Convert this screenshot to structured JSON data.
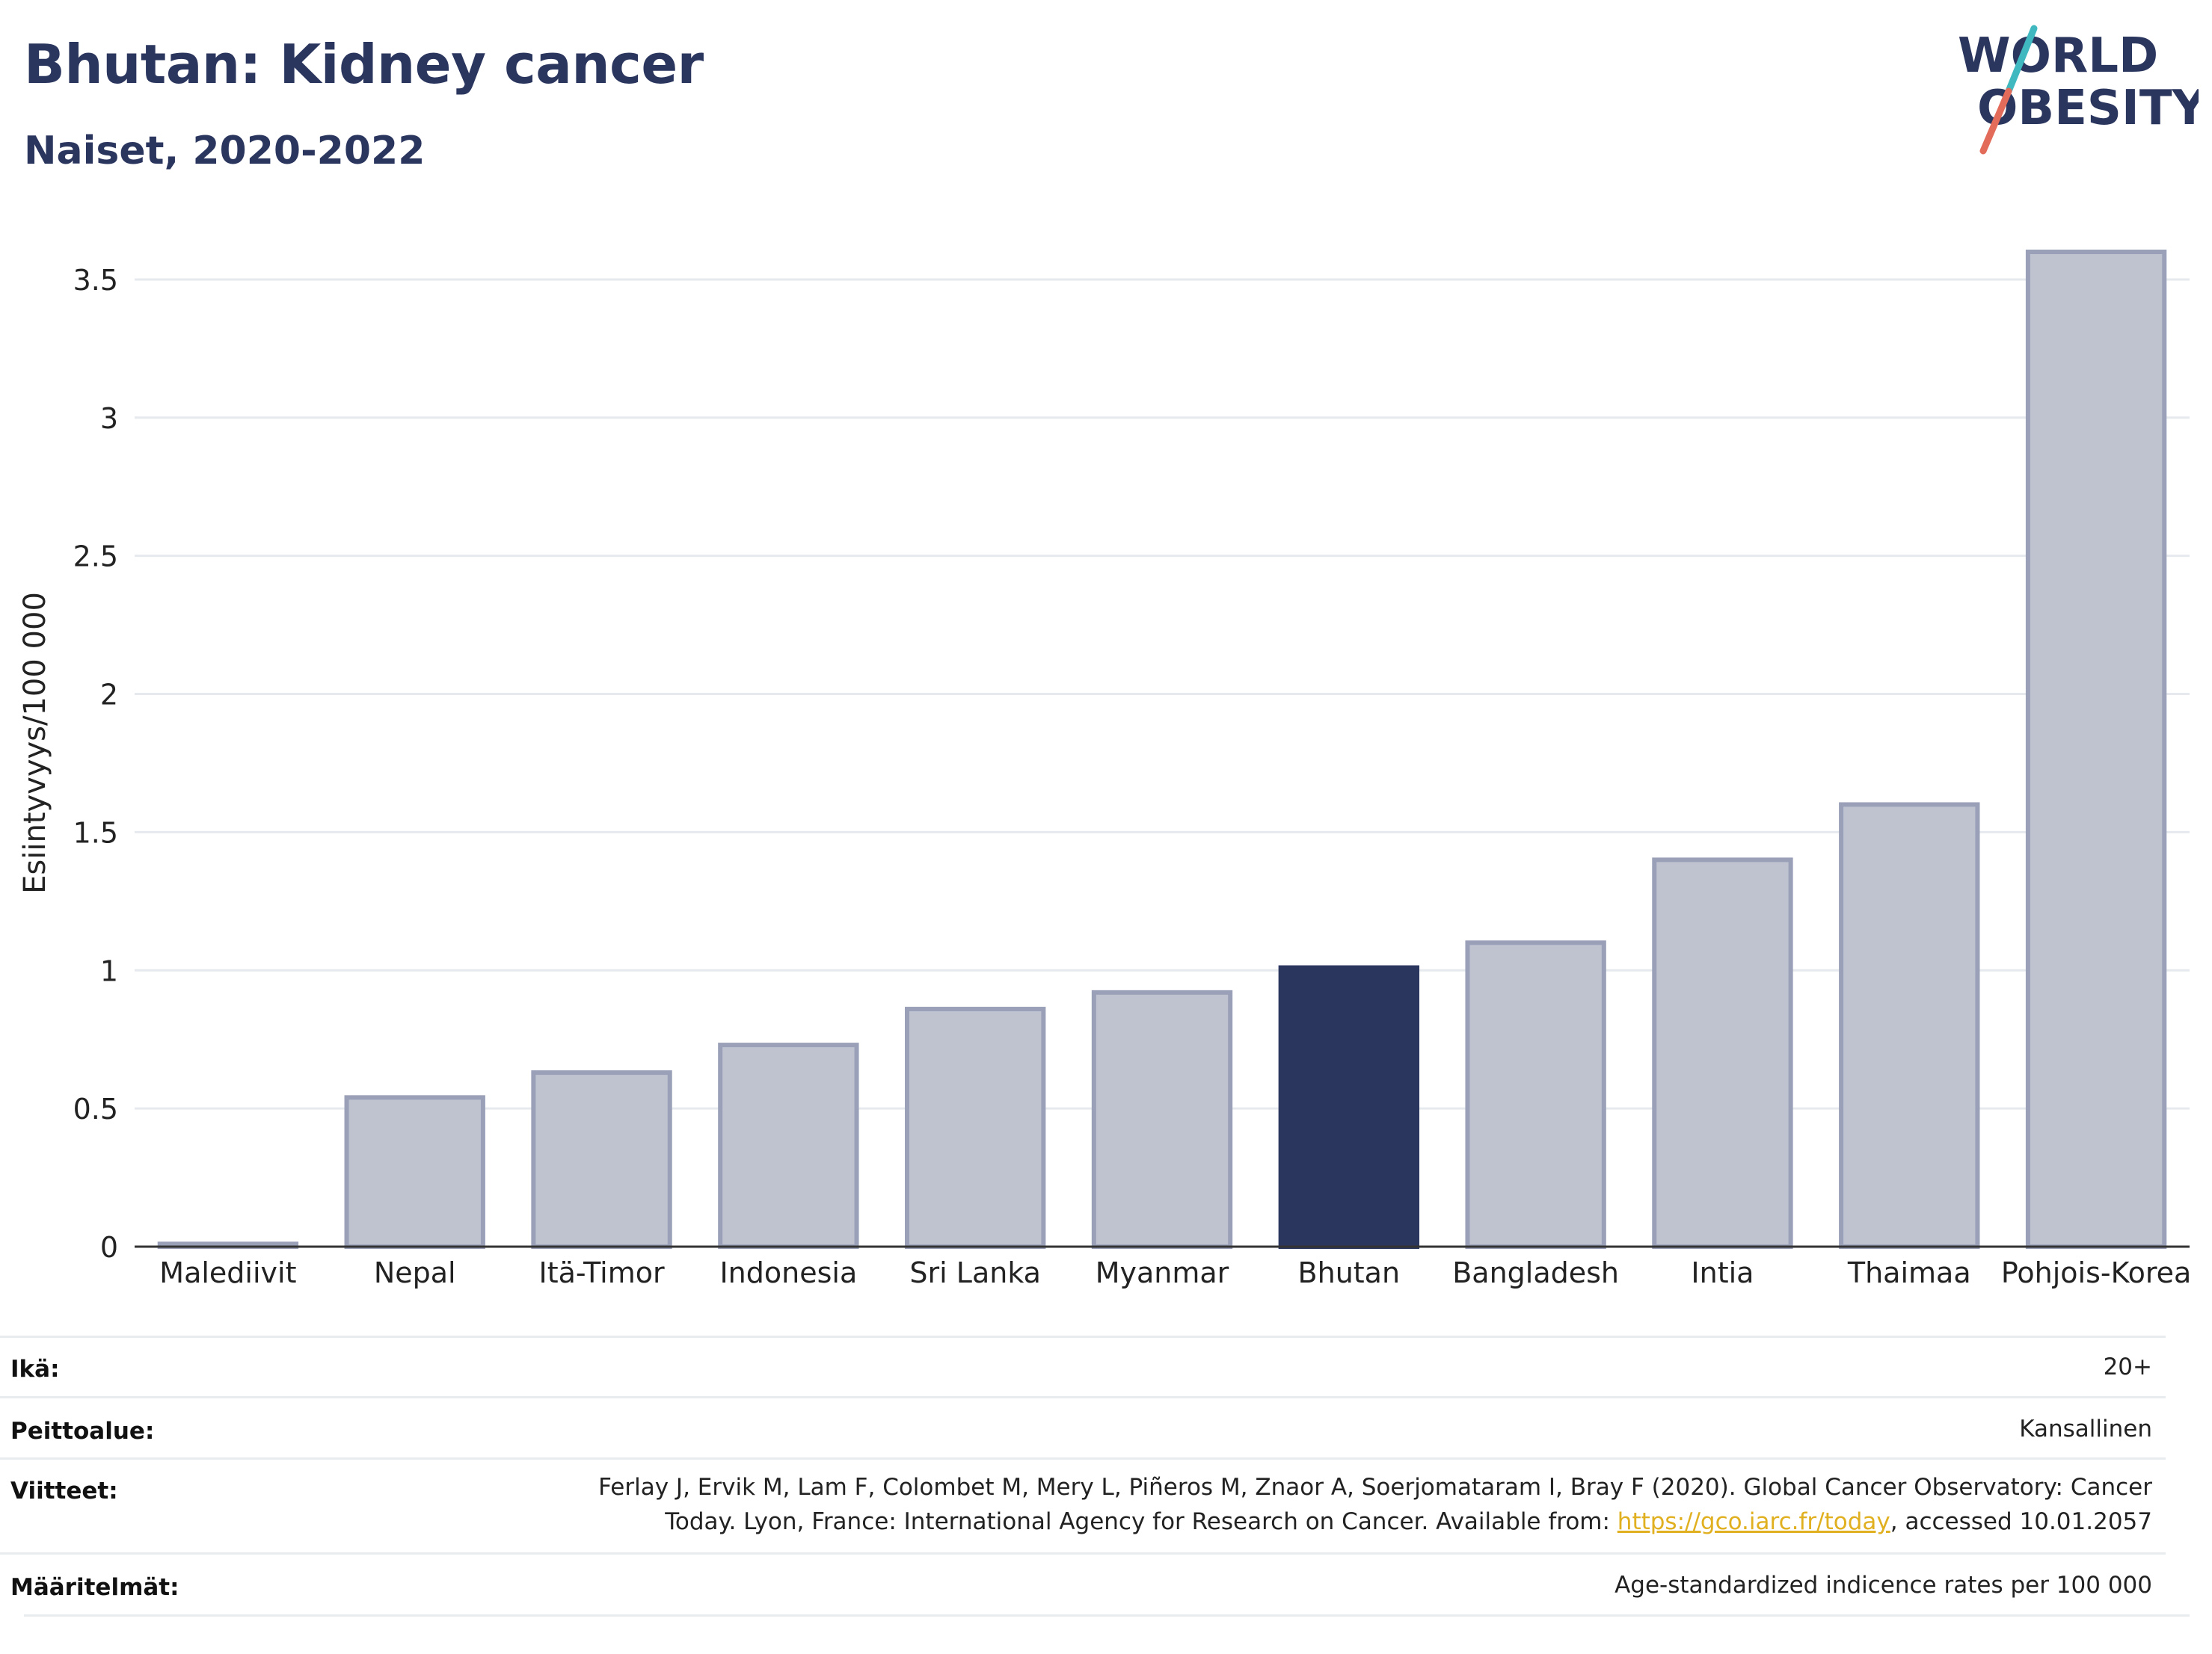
{
  "header": {
    "title": "Bhutan: Kidney cancer",
    "subtitle": "Naiset, 2020-2022"
  },
  "logo": {
    "line1": "WORLD",
    "line2": "OBESITY",
    "slash_colors": [
      "#3fb8c0",
      "#e36b5a"
    ]
  },
  "colors": {
    "highlight_bar": "#2b365f",
    "other_bar_fill": "#bfc3d0",
    "other_bar_stroke": "#9aa0b8",
    "title": "#2b365f",
    "grid": "#e6eaee",
    "link": "#e0b020"
  },
  "chart_data": {
    "type": "bar",
    "categories": [
      "Malediivit",
      "Nepal",
      "Itä-Timor",
      "Indonesia",
      "Sri Lanka",
      "Myanmar",
      "Bhutan",
      "Bangladesh",
      "Intia",
      "Thaimaa",
      "Pohjois-Korea"
    ],
    "values": [
      0.01,
      0.54,
      0.63,
      0.73,
      0.86,
      0.92,
      1.01,
      1.1,
      1.4,
      1.6,
      3.6
    ],
    "highlight": "Bhutan",
    "ylabel": "Esiintyvyys/100 000",
    "xlabel": "",
    "ylim": [
      0,
      3.7
    ],
    "yticks": [
      0,
      0.5,
      1,
      1.5,
      2,
      2.5,
      3,
      3.5
    ],
    "ytick_labels": [
      "0",
      "0.5",
      "1",
      "1.5",
      "2",
      "2.5",
      "3",
      "3.5"
    ],
    "grid": true
  },
  "info": {
    "age_label": "Ikä:",
    "age_value": "20+",
    "coverage_label": "Peittoalue:",
    "coverage_value": "Kansallinen",
    "refs_label": "Viitteet:",
    "refs_line1": "Ferlay J, Ervik M, Lam F, Colombet M, Mery L, Piñeros M, Znaor A, Soerjomataram I, Bray F (2020). Global Cancer Observatory: Cancer",
    "refs_line2_pre": "Today. Lyon, France: International Agency for Research on Cancer. Available from: ",
    "refs_link": "https://gco.iarc.fr/today",
    "refs_line2_post": ", accessed 10.01.2057",
    "defs_label": "Määritelmät:",
    "defs_value": "Age-standardized indicence rates per 100 000"
  }
}
